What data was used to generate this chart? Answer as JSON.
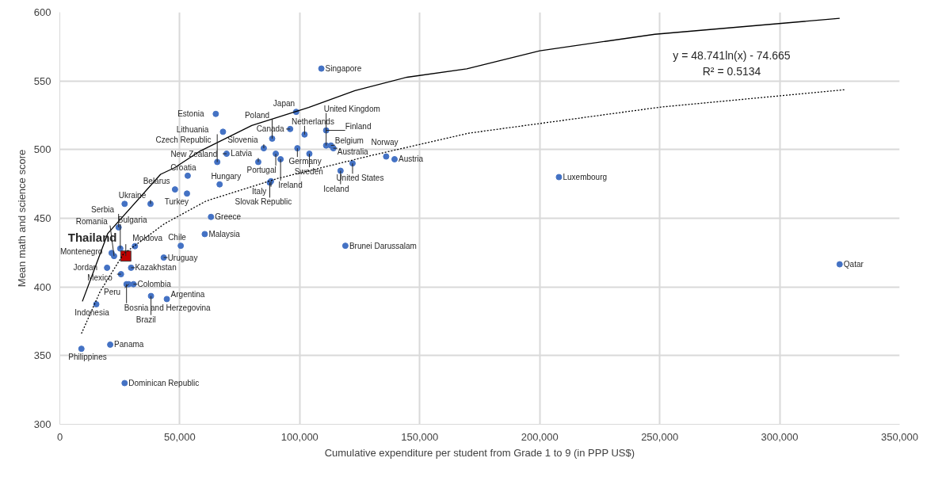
{
  "chart_data": {
    "type": "scatter",
    "xlabel": "Cumulative expenditure per student from Grade 1 to 9 (in PPP US$)",
    "ylabel": "Mean math and science score",
    "xlim": [
      0,
      350000
    ],
    "ylim": [
      300,
      600
    ],
    "xticks": [
      {
        "value": 0,
        "label": "0"
      },
      {
        "value": 50000,
        "label": "50,000"
      },
      {
        "value": 100000,
        "label": "100,000"
      },
      {
        "value": 150000,
        "label": "150,000"
      },
      {
        "value": 200000,
        "label": "200,000"
      },
      {
        "value": 250000,
        "label": "250,000"
      },
      {
        "value": 300000,
        "label": "300,000"
      },
      {
        "value": 350000,
        "label": "350,000"
      }
    ],
    "yticks": [
      300,
      350,
      400,
      450,
      500,
      550,
      600
    ],
    "grid": true,
    "series": [
      {
        "marker": "circle",
        "color": "#4472c4",
        "x": [
          109000,
          208000,
          325000,
          119000,
          65000,
          98500,
          96000,
          102000,
          68000,
          88500,
          69500,
          85000,
          90000,
          92000,
          65600,
          82700,
          99000,
          111000,
          113000,
          114000,
          104000,
          111000,
          122000,
          117000,
          136000,
          139500,
          88000,
          87500,
          66600,
          53300,
          48000,
          53000,
          37800,
          27000,
          63000,
          60400,
          24500,
          31300,
          50400,
          25200,
          21600,
          22600,
          43300,
          19700,
          29700,
          25500,
          27800,
          28700,
          30700,
          38000,
          44600,
          15200,
          21000,
          9000,
          27000
        ],
        "values": [
          559,
          480,
          416.5,
          430,
          526,
          527.5,
          515,
          511,
          513,
          508,
          497,
          501,
          497,
          493,
          491,
          491,
          501,
          503,
          503,
          501,
          497,
          514,
          490,
          484.6,
          495,
          493,
          477,
          476,
          474.7,
          481,
          471,
          468,
          460.5,
          460.5,
          451,
          438.5,
          443.4,
          429.7,
          430,
          428,
          424.7,
          422.5,
          421.4,
          414,
          414,
          409.3,
          402,
          402,
          402,
          393.4,
          391.2,
          387.4,
          358,
          355,
          330
        ],
        "value_labels": [
          "Singapore",
          "Luxembourg",
          "Qatar",
          "Brunei  Darussalam",
          "Estonia",
          "Japan",
          "Canada",
          "Netherlands",
          "Czech  Republic",
          "Poland",
          "New Zealand",
          "Slovenia",
          "Portugal",
          "Ireland",
          "Lithuania",
          "Latvia",
          "Germany",
          "United  Kingdom",
          "Belgium",
          "Australia",
          "Sweden",
          "Finland",
          "United  States",
          "Iceland",
          "Norway",
          "Austria",
          "Italy",
          "Slovak Republic",
          "Hungary",
          "Croatia",
          "Belarus",
          "Turkey",
          "Ukraine",
          null,
          "Greece",
          "Malaysia",
          "Serbia",
          "Moldova",
          "Chile",
          "Bulgaria",
          "Montenegro",
          "Romania",
          "Uruguay",
          "Jordan",
          "Kazakhstan",
          "Mexico",
          "Bosnia  and  Herzegovina",
          "Peru",
          "Colombia",
          "Brazil",
          "Argentina",
          "Indonesia",
          "Panama",
          "Philippines",
          "Dominican  Republic"
        ]
      },
      {
        "marker": "square",
        "color": "#c00000",
        "x": [
          27500
        ],
        "values": [
          422.5
        ],
        "value_labels": [
          "Thailand"
        ]
      },
      {
        "type": "line",
        "line_style": "solid",
        "color": "#000000",
        "x": [
          9400,
          20000,
          42000,
          47800,
          58500,
          80000,
          103700,
          123000,
          144700,
          169600,
          200000,
          248000,
          325000
        ],
        "values": [
          389.5,
          439,
          482,
          486.8,
          499,
          517.6,
          530.7,
          543,
          552.7,
          558.8,
          572,
          584,
          595.6
        ]
      },
      {
        "type": "line",
        "line_style": "dotted",
        "color": "#000000",
        "x": [
          9000,
          16800,
          26500,
          43600,
          61000,
          90800,
          129500,
          170500,
          250500,
          327000
        ],
        "values": [
          366,
          396.7,
          424,
          446,
          462.6,
          479,
          495.6,
          512,
          531,
          543.6
        ]
      }
    ],
    "annotations": [
      "y = 48.741ln(x) - 74.665",
      "R² = 0.5134"
    ]
  }
}
